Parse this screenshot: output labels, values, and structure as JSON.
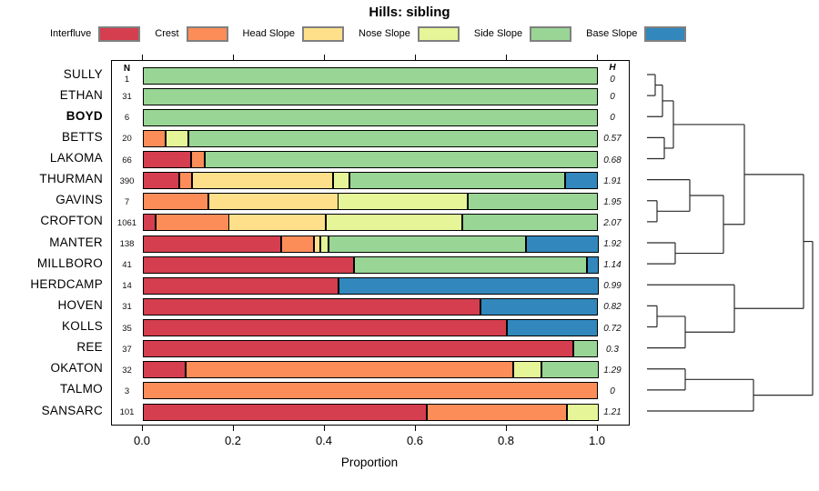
{
  "title": "Hills: sibling",
  "legend": {
    "items": [
      {
        "label": "Interfluve",
        "color": "#D53E4F"
      },
      {
        "label": "Crest",
        "color": "#FC8D59"
      },
      {
        "label": "Head Slope",
        "color": "#FEE08B"
      },
      {
        "label": "Nose Slope",
        "color": "#E6F598"
      },
      {
        "label": "Side Slope",
        "color": "#99D594"
      },
      {
        "label": "Base Slope",
        "color": "#3288BD"
      }
    ]
  },
  "columns": {
    "n_header": "N",
    "h_header": "H"
  },
  "axis": {
    "label": "Proportion",
    "ticks": [
      {
        "label": "0.0",
        "value": 0.0
      },
      {
        "label": "0.2",
        "value": 0.2
      },
      {
        "label": "0.4",
        "value": 0.4
      },
      {
        "label": "0.6",
        "value": 0.6
      },
      {
        "label": "0.8",
        "value": 0.8
      },
      {
        "label": "1.0",
        "value": 1.0
      }
    ]
  },
  "chart_data": {
    "type": "bar",
    "orientation": "horizontal",
    "stacked": true,
    "title": "Hills: sibling",
    "xlabel": "Proportion",
    "xlim": [
      0,
      1
    ],
    "categories": [
      "Interfluve",
      "Crest",
      "Head Slope",
      "Nose Slope",
      "Side Slope",
      "Base Slope"
    ],
    "palette": {
      "Interfluve": "#D53E4F",
      "Crest": "#FC8D59",
      "Head Slope": "#FEE08B",
      "Nose Slope": "#E6F598",
      "Side Slope": "#99D594",
      "Base Slope": "#3288BD"
    },
    "rows": [
      {
        "label": "SULLY",
        "bold": false,
        "n": "1",
        "h": "0",
        "segments": [
          [
            "Side Slope",
            1
          ]
        ]
      },
      {
        "label": "ETHAN",
        "bold": false,
        "n": "31",
        "h": "0",
        "segments": [
          [
            "Side Slope",
            1
          ]
        ]
      },
      {
        "label": "BOYD",
        "bold": true,
        "n": "6",
        "h": "0",
        "segments": [
          [
            "Side Slope",
            1
          ]
        ]
      },
      {
        "label": "BETTS",
        "bold": false,
        "n": "20",
        "h": "0.57",
        "segments": [
          [
            "Crest",
            0.05
          ],
          [
            "Nose Slope",
            0.05
          ],
          [
            "Side Slope",
            0.9
          ]
        ]
      },
      {
        "label": "LAKOMA",
        "bold": false,
        "n": "66",
        "h": "0.68",
        "segments": [
          [
            "Interfluve",
            0.106
          ],
          [
            "Crest",
            0.03
          ],
          [
            "Side Slope",
            0.864
          ]
        ]
      },
      {
        "label": "THURMAN",
        "bold": false,
        "n": "390",
        "h": "1.91",
        "segments": [
          [
            "Interfluve",
            0.0795
          ],
          [
            "Crest",
            0.0282
          ],
          [
            "Head Slope",
            0.3103
          ],
          [
            "Nose Slope",
            0.0359
          ],
          [
            "Side Slope",
            0.4743
          ],
          [
            "Base Slope",
            0.0718
          ]
        ]
      },
      {
        "label": "GAVINS",
        "bold": false,
        "n": "7",
        "h": "1.95",
        "segments": [
          [
            "Crest",
            0.143
          ],
          [
            "Head Slope",
            0.286
          ],
          [
            "Nose Slope",
            0.2855
          ],
          [
            "Side Slope",
            0.2855
          ]
        ]
      },
      {
        "label": "CROFTON",
        "bold": false,
        "n": "1061",
        "h": "2.07",
        "segments": [
          [
            "Interfluve",
            0.027
          ],
          [
            "Crest",
            0.161
          ],
          [
            "Head Slope",
            0.214
          ],
          [
            "Nose Slope",
            0.3
          ],
          [
            "Side Slope",
            0.298
          ]
        ]
      },
      {
        "label": "MANTER",
        "bold": false,
        "n": "138",
        "h": "1.92",
        "segments": [
          [
            "Interfluve",
            0.304
          ],
          [
            "Crest",
            0.072
          ],
          [
            "Head Slope",
            0.014
          ],
          [
            "Nose Slope",
            0.018
          ],
          [
            "Side Slope",
            0.433
          ],
          [
            "Base Slope",
            0.159
          ]
        ]
      },
      {
        "label": "MILLBORO",
        "bold": false,
        "n": "41",
        "h": "1.14",
        "segments": [
          [
            "Interfluve",
            0.463
          ],
          [
            "Side Slope",
            0.512
          ],
          [
            "Base Slope",
            0.025
          ]
        ]
      },
      {
        "label": "HERDCAMP",
        "bold": false,
        "n": "14",
        "h": "0.99",
        "segments": [
          [
            "Interfluve",
            0.429
          ],
          [
            "Base Slope",
            0.571
          ]
        ]
      },
      {
        "label": "HOVEN",
        "bold": false,
        "n": "31",
        "h": "0.82",
        "segments": [
          [
            "Interfluve",
            0.742
          ],
          [
            "Base Slope",
            0.258
          ]
        ]
      },
      {
        "label": "KOLLS",
        "bold": false,
        "n": "35",
        "h": "0.72",
        "segments": [
          [
            "Interfluve",
            0.8
          ],
          [
            "Base Slope",
            0.2
          ]
        ]
      },
      {
        "label": "REE",
        "bold": false,
        "n": "37",
        "h": "0.3",
        "segments": [
          [
            "Interfluve",
            0.946
          ],
          [
            "Side Slope",
            0.054
          ]
        ]
      },
      {
        "label": "OKATON",
        "bold": false,
        "n": "32",
        "h": "1.29",
        "segments": [
          [
            "Interfluve",
            0.094
          ],
          [
            "Crest",
            0.719
          ],
          [
            "Nose Slope",
            0.062
          ],
          [
            "Side Slope",
            0.125
          ]
        ]
      },
      {
        "label": "TALMO",
        "bold": false,
        "n": "3",
        "h": "0",
        "segments": [
          [
            "Crest",
            1
          ]
        ]
      },
      {
        "label": "SANSARC",
        "bold": false,
        "n": "101",
        "h": "1.21",
        "segments": [
          [
            "Interfluve",
            0.624
          ],
          [
            "Crest",
            0.307
          ],
          [
            "Nose Slope",
            0.069
          ]
        ]
      }
    ]
  },
  "dendrogram": {
    "leaf_start_x": 711,
    "merges": [
      {
        "a": "L0",
        "b": "L1",
        "x": 720
      },
      {
        "a": "M0",
        "b": "L2",
        "x": 728
      },
      {
        "a": "L3",
        "b": "L4",
        "x": 730
      },
      {
        "a": "M1",
        "b": "M2",
        "x": 740
      },
      {
        "a": "L6",
        "b": "L7",
        "x": 722
      },
      {
        "a": "L5",
        "b": "M4",
        "x": 758
      },
      {
        "a": "L8",
        "b": "L9",
        "x": 742
      },
      {
        "a": "M5",
        "b": "M6",
        "x": 795
      },
      {
        "a": "M3",
        "b": "M7",
        "x": 818
      },
      {
        "a": "L11",
        "b": "L12",
        "x": 722
      },
      {
        "a": "M9",
        "b": "L13",
        "x": 753
      },
      {
        "a": "L10",
        "b": "M10",
        "x": 807
      },
      {
        "a": "M8",
        "b": "M11",
        "x": 883
      },
      {
        "a": "L14",
        "b": "L15",
        "x": 753
      },
      {
        "a": "M13",
        "b": "L16",
        "x": 828
      },
      {
        "a": "M12",
        "b": "M14",
        "x": 893
      }
    ]
  }
}
